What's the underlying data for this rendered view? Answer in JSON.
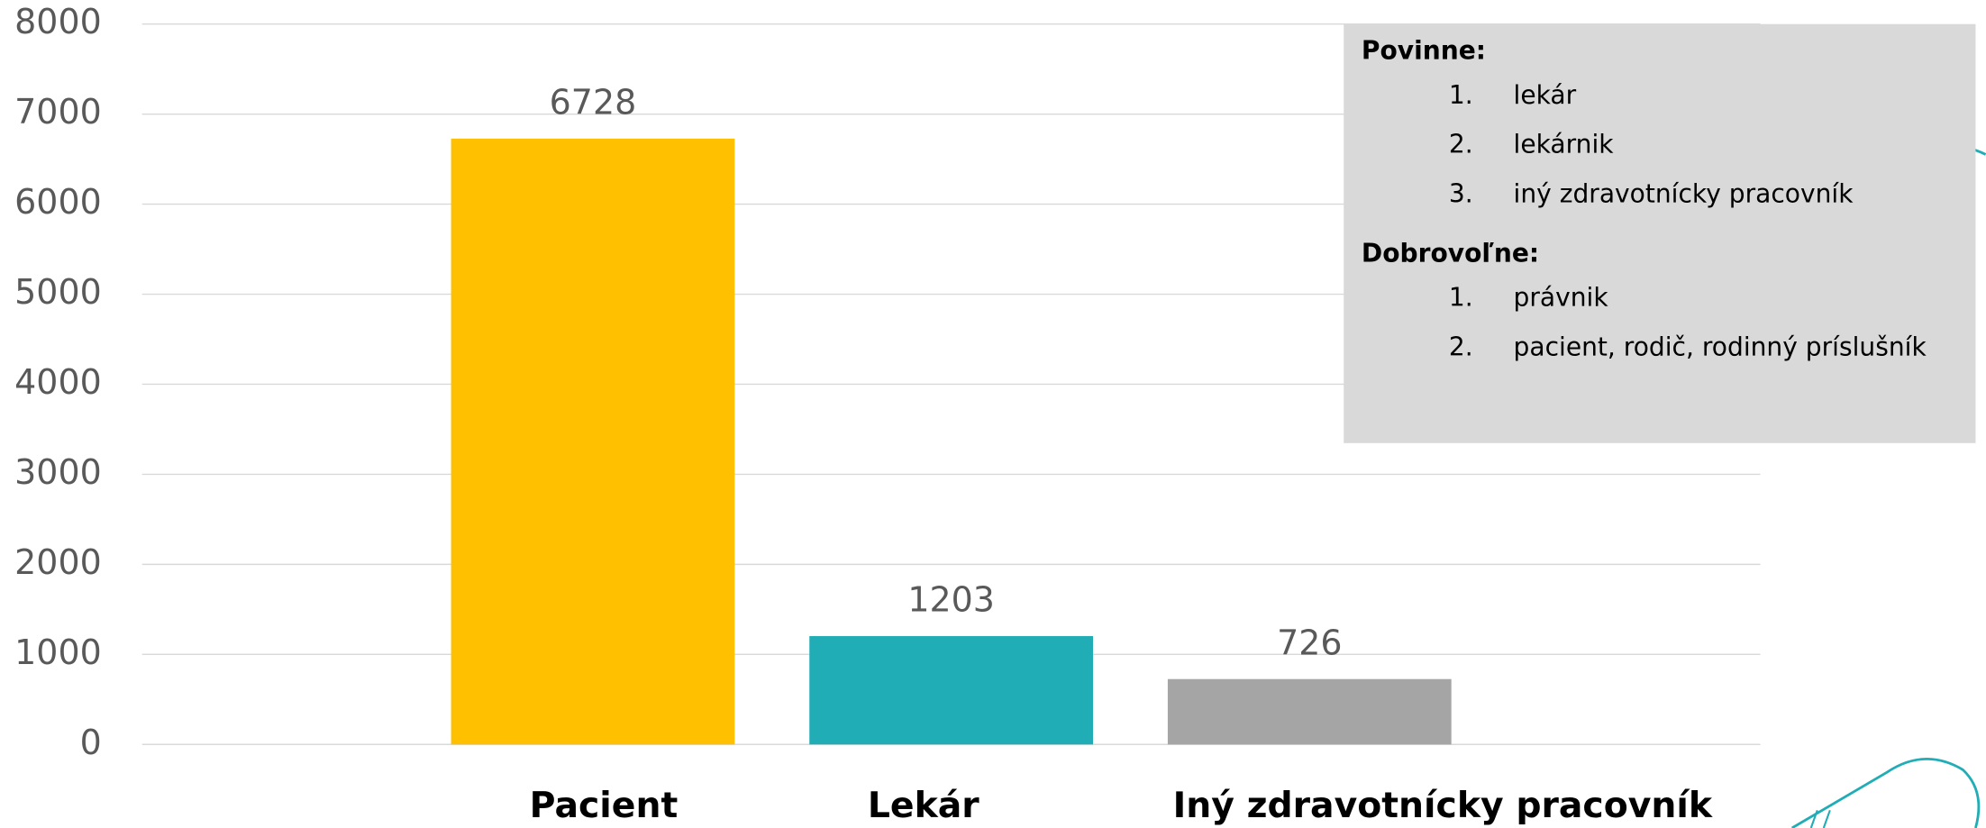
{
  "chart_data": {
    "type": "bar",
    "categories": [
      "Pacient",
      "Lekár",
      "Iný zdravotnícky pracovník"
    ],
    "values": [
      6728,
      1203,
      726
    ],
    "colors": [
      "#ffc000",
      "#21adb5",
      "#a5a5a5"
    ],
    "ylim": [
      0,
      8000
    ],
    "yticks": [
      0,
      1000,
      2000,
      3000,
      4000,
      5000,
      6000,
      7000,
      8000
    ],
    "grid": true,
    "annotation": {
      "sections": [
        {
          "heading": "Povinne:",
          "items": [
            {
              "number": "1.",
              "text": "lekár"
            },
            {
              "number": "2.",
              "text": "lekárnik"
            },
            {
              "number": "3.",
              "text": "iný zdravotnícky pracovník"
            }
          ]
        },
        {
          "heading": "Dobrovoľne:",
          "items": [
            {
              "number": "1.",
              "text": "právnik"
            },
            {
              "number": "2.",
              "text": "pacient, rodič, rodinný príslušník"
            }
          ]
        }
      ]
    }
  }
}
